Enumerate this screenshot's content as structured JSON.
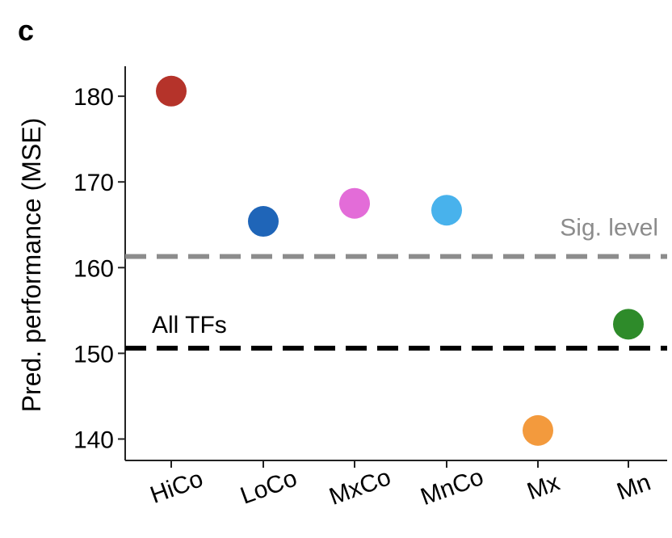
{
  "panel_label": "c",
  "chart_data": {
    "type": "scatter",
    "title": "",
    "xlabel": "",
    "ylabel": "Pred. performance (MSE)",
    "ylim": [
      137.5,
      183.5
    ],
    "yticks": [
      140,
      150,
      160,
      170,
      180
    ],
    "grid": false,
    "categories": [
      "HiCo",
      "LoCo",
      "MxCo",
      "MnCo",
      "Mx",
      "Mn"
    ],
    "values": [
      180.6,
      165.4,
      167.5,
      166.7,
      141.0,
      153.4
    ],
    "point_colors": [
      "#b5332a",
      "#1f65b8",
      "#e36cd8",
      "#48b2ec",
      "#f39a3d",
      "#2e8b2a"
    ],
    "reference_lines": [
      {
        "label": "Sig. level",
        "value": 161.3,
        "color": "#8c8c8c",
        "style": "dashed"
      },
      {
        "label": "All TFs",
        "value": 150.6,
        "color": "#000000",
        "style": "dashed"
      }
    ]
  }
}
